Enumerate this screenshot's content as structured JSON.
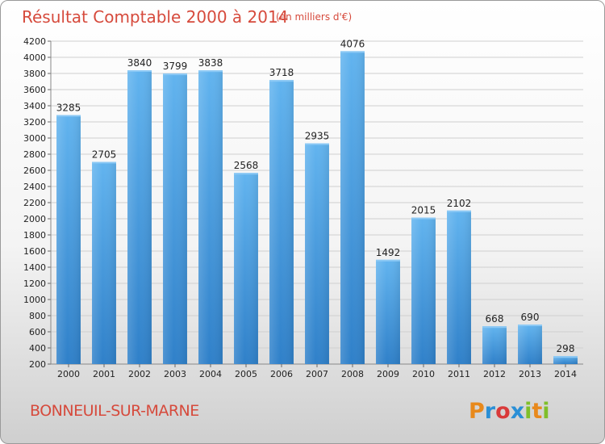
{
  "header": {
    "title": "Résultat Comptable 2000 à 2014",
    "subtitle": "(en milliers d'€)"
  },
  "footer": {
    "commune": "BONNEUIL-SUR-MARNE",
    "logo_text": "Proxiti",
    "logo_colors": [
      "#e8891c",
      "#2a8fd6",
      "#d93a3a",
      "#2a8fd6",
      "#7fbf2a",
      "#e8891c",
      "#7fbf2a"
    ]
  },
  "chart_data": {
    "type": "bar",
    "title": "Résultat Comptable 2000 à 2014",
    "subtitle": "(en milliers d'€)",
    "categories": [
      "2000",
      "2001",
      "2002",
      "2003",
      "2004",
      "2005",
      "2006",
      "2007",
      "2008",
      "2009",
      "2010",
      "2011",
      "2012",
      "2013",
      "2014"
    ],
    "values": [
      3285,
      2705,
      3840,
      3799,
      3838,
      2568,
      3718,
      2935,
      4076,
      1492,
      2015,
      2102,
      668,
      690,
      298
    ],
    "data_labels": [
      "3285",
      "2705",
      "3840",
      "3799",
      "3838",
      "2568",
      "3718",
      "2935",
      "4076",
      "1492",
      "2015",
      "2102",
      "668",
      "690",
      "298"
    ],
    "ylim": [
      200,
      4200
    ],
    "yticks": [
      "200",
      "400",
      "600",
      "800",
      "1000",
      "1200",
      "1400",
      "1600",
      "1800",
      "2000",
      "2200",
      "2400",
      "2600",
      "2800",
      "3000",
      "3200",
      "3400",
      "3600",
      "3800",
      "4000",
      "4200"
    ],
    "grid": true,
    "colors": {
      "bar_light": "#5fb0ec",
      "bar_dark": "#2f7fc8",
      "grid": "#cfcfcf"
    }
  }
}
